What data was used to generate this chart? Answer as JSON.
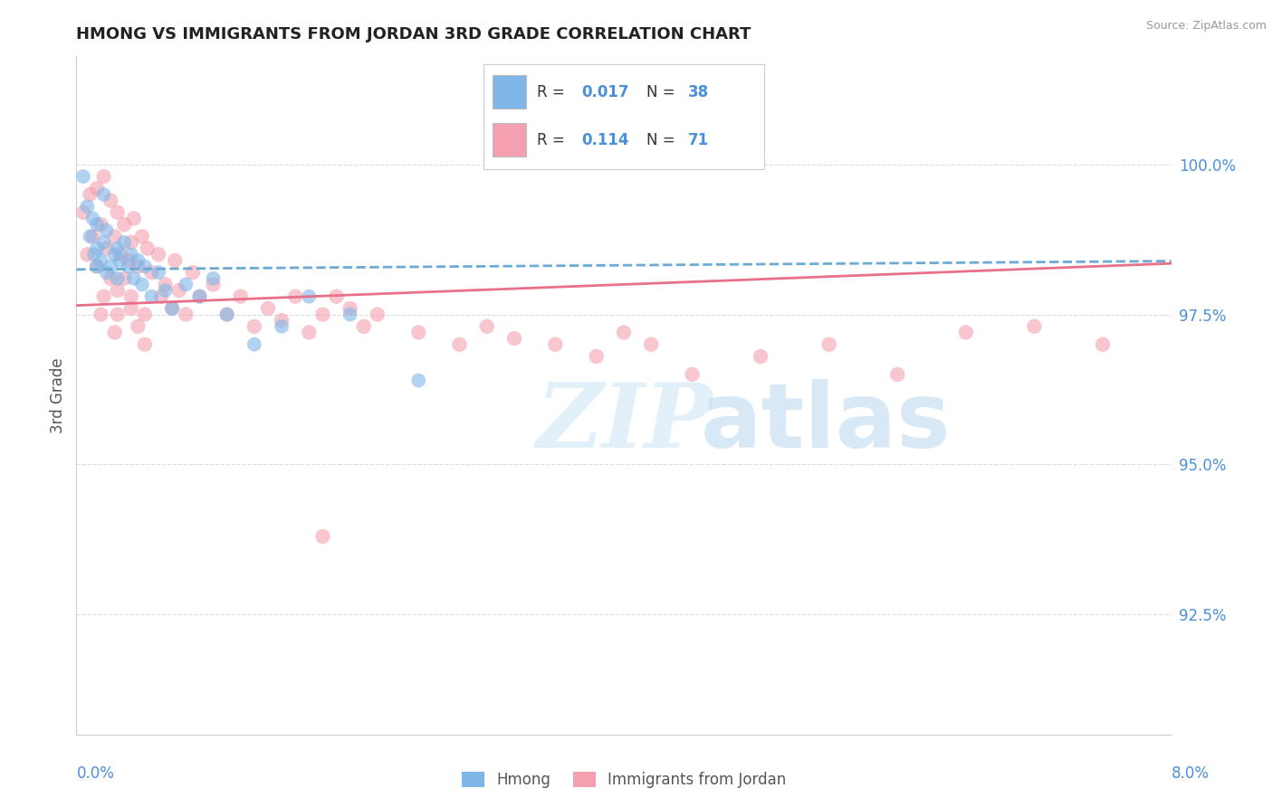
{
  "title": "HMONG VS IMMIGRANTS FROM JORDAN 3RD GRADE CORRELATION CHART",
  "source": "Source: ZipAtlas.com",
  "ylabel": "3rd Grade",
  "xlim": [
    0.0,
    8.0
  ],
  "ylim": [
    90.5,
    101.8
  ],
  "yticks": [
    92.5,
    95.0,
    97.5,
    100.0
  ],
  "ytick_labels": [
    "92.5%",
    "95.0%",
    "97.5%",
    "100.0%"
  ],
  "color_hmong": "#7eb6e8",
  "color_jordan": "#f4a0b0",
  "color_line_hmong": "#6aaad4",
  "color_line_jordan": "#e8708a",
  "color_axis_text": "#4a90d9",
  "color_title": "#222222",
  "background_color": "#ffffff",
  "hmong_x": [
    0.05,
    0.08,
    0.1,
    0.12,
    0.13,
    0.15,
    0.15,
    0.18,
    0.2,
    0.2,
    0.22,
    0.22,
    0.25,
    0.28,
    0.3,
    0.3,
    0.32,
    0.35,
    0.38,
    0.4,
    0.42,
    0.45,
    0.48,
    0.5,
    0.55,
    0.6,
    0.65,
    0.7,
    0.8,
    0.9,
    1.0,
    1.1,
    1.3,
    1.5,
    1.7,
    2.0,
    2.5,
    0.15
  ],
  "hmong_y": [
    99.8,
    99.3,
    98.8,
    99.1,
    98.5,
    98.6,
    99.0,
    98.4,
    98.7,
    99.5,
    98.2,
    98.9,
    98.3,
    98.5,
    98.6,
    98.1,
    98.4,
    98.7,
    98.3,
    98.5,
    98.1,
    98.4,
    98.0,
    98.3,
    97.8,
    98.2,
    97.9,
    97.6,
    98.0,
    97.8,
    98.1,
    97.5,
    97.0,
    97.3,
    97.8,
    97.5,
    96.4,
    98.3
  ],
  "jordan_x": [
    0.05,
    0.08,
    0.1,
    0.12,
    0.15,
    0.15,
    0.18,
    0.2,
    0.22,
    0.25,
    0.25,
    0.28,
    0.3,
    0.3,
    0.32,
    0.35,
    0.38,
    0.4,
    0.4,
    0.42,
    0.45,
    0.48,
    0.5,
    0.52,
    0.55,
    0.6,
    0.62,
    0.65,
    0.7,
    0.72,
    0.75,
    0.8,
    0.85,
    0.9,
    1.0,
    1.1,
    1.2,
    1.3,
    1.4,
    1.5,
    1.6,
    1.7,
    1.8,
    1.9,
    2.0,
    2.1,
    2.2,
    2.5,
    2.8,
    3.0,
    3.2,
    3.5,
    3.8,
    4.0,
    4.2,
    4.5,
    5.0,
    5.5,
    6.0,
    6.5,
    7.0,
    7.5,
    1.8,
    0.35,
    0.4,
    0.45,
    0.5,
    0.3,
    0.28,
    0.2,
    0.18
  ],
  "jordan_y": [
    99.2,
    98.5,
    99.5,
    98.8,
    99.6,
    98.3,
    99.0,
    99.8,
    98.6,
    99.4,
    98.1,
    98.8,
    99.2,
    97.9,
    98.5,
    99.0,
    98.4,
    98.7,
    97.6,
    99.1,
    98.3,
    98.8,
    97.5,
    98.6,
    98.2,
    98.5,
    97.8,
    98.0,
    97.6,
    98.4,
    97.9,
    97.5,
    98.2,
    97.8,
    98.0,
    97.5,
    97.8,
    97.3,
    97.6,
    97.4,
    97.8,
    97.2,
    97.5,
    97.8,
    97.6,
    97.3,
    97.5,
    97.2,
    97.0,
    97.3,
    97.1,
    97.0,
    96.8,
    97.2,
    97.0,
    96.5,
    96.8,
    97.0,
    96.5,
    97.2,
    97.3,
    97.0,
    93.8,
    98.1,
    97.8,
    97.3,
    97.0,
    97.5,
    97.2,
    97.8,
    97.5
  ],
  "hmong_line_x0": 0.0,
  "hmong_line_x1": 8.0,
  "hmong_line_y0": 98.25,
  "hmong_line_y1": 98.39,
  "jordan_line_x0": 0.0,
  "jordan_line_x1": 8.0,
  "jordan_line_y0": 97.65,
  "jordan_line_y1": 98.35
}
